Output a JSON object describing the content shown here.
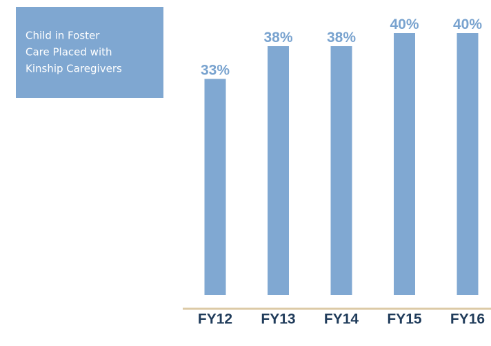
{
  "chart_data": {
    "type": "bar",
    "title": [
      "Child in Foster",
      "Care Placed with",
      "Kinship Caregivers"
    ],
    "categories": [
      "FY12",
      "FY13",
      "FY14",
      "FY15",
      "FY16"
    ],
    "values": [
      33,
      38,
      38,
      40,
      40
    ],
    "value_labels": [
      "33%",
      "38%",
      "38%",
      "40%",
      "40%"
    ],
    "color": "#80a8d2",
    "ylim": [
      0,
      40
    ]
  }
}
